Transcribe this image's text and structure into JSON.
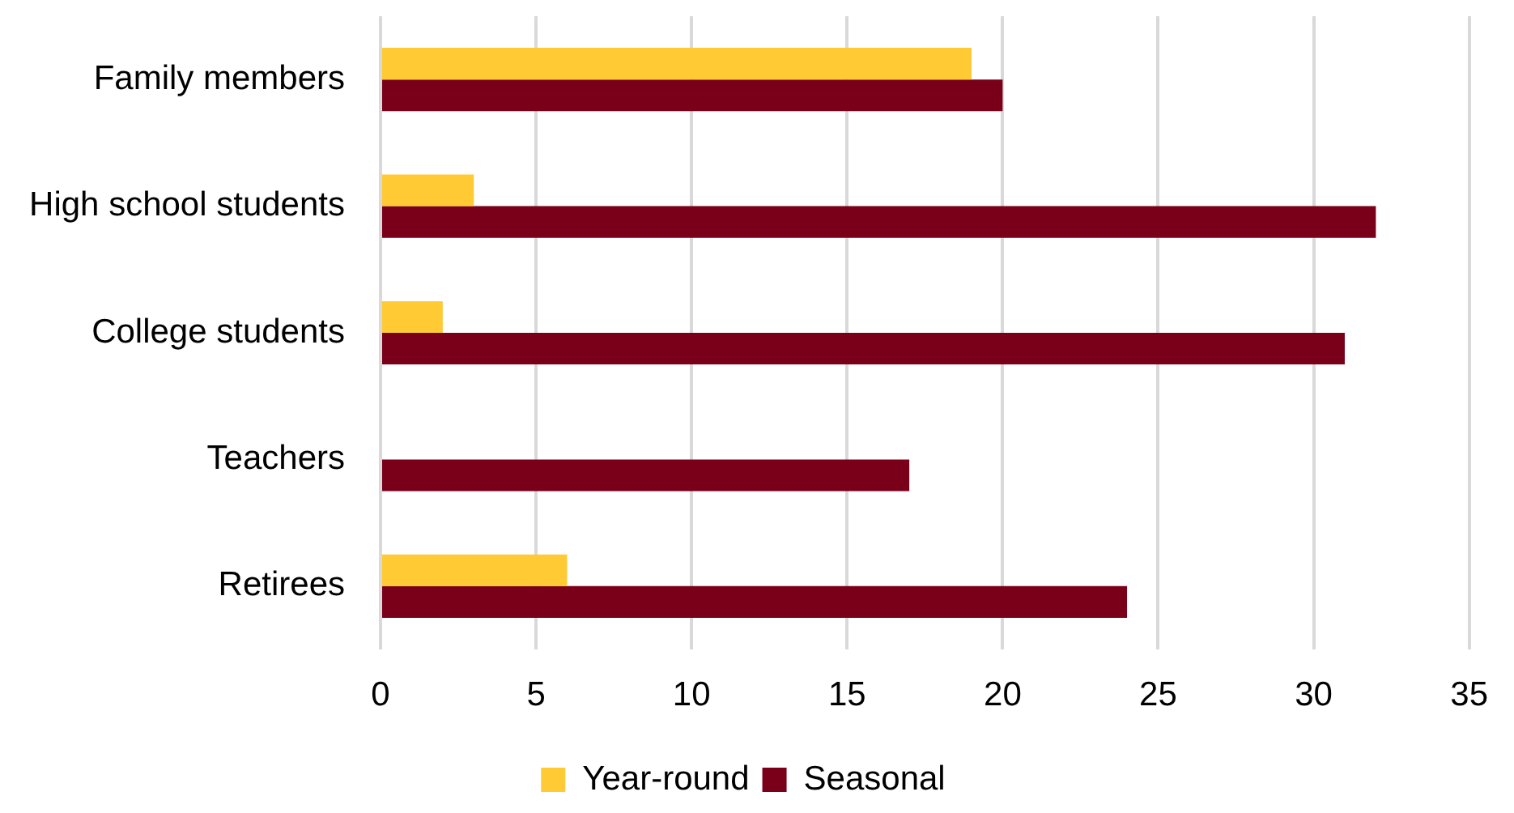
{
  "chart_data": {
    "type": "bar",
    "orientation": "horizontal",
    "categories": [
      "Family members",
      "High school students",
      "College students",
      "Teachers",
      "Retirees"
    ],
    "series": [
      {
        "name": "Year-round",
        "color": "#ffca33",
        "values": [
          19,
          3,
          2,
          0,
          6
        ]
      },
      {
        "name": "Seasonal",
        "color": "#7a001a",
        "values": [
          20,
          32,
          31,
          17,
          24
        ]
      }
    ],
    "xlim": [
      0,
      35
    ],
    "xticks": [
      0,
      5,
      10,
      15,
      20,
      25,
      30,
      35
    ],
    "grid": "x",
    "legend": "bottom"
  }
}
